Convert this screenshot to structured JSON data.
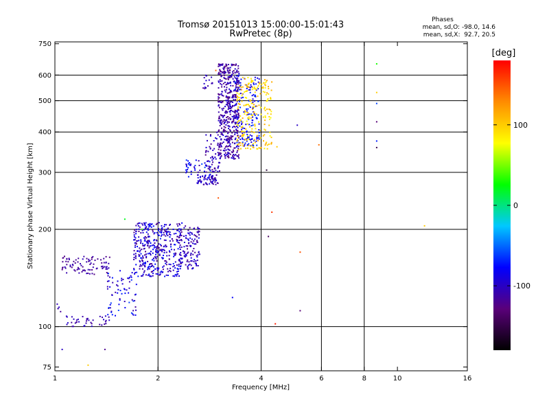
{
  "chart_data": {
    "type": "scatter",
    "title": "Tromsø 20151013 15:00:00-15:01:43",
    "subtitle": "RwPretec (8p)",
    "phase_box": {
      "title": "Phases",
      "line1": "mean, sd,O: -98.0, 14.6",
      "line2": "mean, sd,X:  92.7, 20.5"
    },
    "xlabel": "Frequency [MHz]",
    "ylabel": "Stationary phase Virtual Height [km]",
    "x_scale": "log",
    "y_scale": "log",
    "xlim": [
      1,
      16
    ],
    "ylim": [
      73,
      760
    ],
    "x_ticks": [
      1,
      2,
      4,
      6,
      8,
      10,
      16
    ],
    "x_tick_labels": [
      "1",
      "2",
      "4",
      "6",
      "8",
      "10",
      "16"
    ],
    "y_ticks": [
      75,
      100,
      200,
      300,
      400,
      500,
      600,
      750
    ],
    "y_tick_labels": [
      "75",
      "100",
      "200",
      "300",
      "400",
      "500",
      "600",
      "750"
    ],
    "grid_x": [
      2,
      4,
      6,
      8
    ],
    "grid_y": [
      100,
      200,
      300,
      400,
      500,
      600
    ],
    "grid": true,
    "colorbar": {
      "label": "[deg]",
      "range": [
        -180,
        180
      ],
      "ticks": [
        100,
        0,
        -100
      ],
      "tick_labels": [
        "100",
        "0",
        "-100"
      ],
      "colors": [
        "#000000",
        "#5a007a",
        "#0000ff",
        "#00c8ff",
        "#00ff00",
        "#ffff00",
        "#ff8c00",
        "#ff0000"
      ]
    },
    "series": [
      {
        "regions": [
          {
            "x": [
              1.0,
              1.05
            ],
            "y": [
              110,
              118
            ],
            "n": 5,
            "phase": [
              -120,
              -95
            ]
          },
          {
            "x": [
              1.05,
              1.45
            ],
            "y": [
              145,
              165
            ],
            "n": 90,
            "phase": [
              -125,
              -100
            ]
          },
          {
            "x": [
              1.08,
              1.45
            ],
            "y": [
              100,
              108
            ],
            "n": 40,
            "phase": [
              -120,
              -95
            ]
          },
          {
            "x": [
              1.4,
              1.75
            ],
            "y": [
              108,
              150
            ],
            "n": 70,
            "phase": [
              -115,
              -60
            ]
          },
          {
            "x": [
              1.7,
              2.35
            ],
            "y": [
              143,
              210
            ],
            "n": 420,
            "phase": [
              -125,
              -70
            ]
          },
          {
            "x": [
              2.3,
              2.65
            ],
            "y": [
              150,
              205
            ],
            "n": 120,
            "phase": [
              -120,
              -80
            ]
          },
          {
            "x": [
              2.6,
              3.0
            ],
            "y": [
              275,
              295
            ],
            "n": 60,
            "phase": [
              -120,
              -80
            ]
          },
          {
            "x": [
              2.4,
              2.9
            ],
            "y": [
              290,
              330
            ],
            "n": 50,
            "phase": [
              -115,
              -60
            ]
          },
          {
            "x": [
              3.0,
              3.45
            ],
            "y": [
              330,
              650
            ],
            "n": 500,
            "phase": [
              -130,
              -90
            ]
          },
          {
            "x": [
              2.75,
              3.05
            ],
            "y": [
              300,
              400
            ],
            "n": 60,
            "phase": [
              -125,
              -90
            ]
          },
          {
            "x": [
              3.35,
              3.95
            ],
            "y": [
              360,
              600
            ],
            "n": 150,
            "phase": [
              -100,
              -60
            ]
          },
          {
            "x": [
              3.4,
              4.3
            ],
            "y": [
              350,
              590
            ],
            "n": 220,
            "phase": [
              75,
              120
            ]
          },
          {
            "x": [
              2.7,
              2.9
            ],
            "y": [
              540,
              600
            ],
            "n": 15,
            "phase": [
              -120,
              -90
            ]
          }
        ]
      },
      {
        "points": [
          {
            "x": 2.95,
            "y": 620,
            "phase": 140
          },
          {
            "x": 3.0,
            "y": 250,
            "phase": 150
          },
          {
            "x": 4.3,
            "y": 226,
            "phase": 160
          },
          {
            "x": 4.4,
            "y": 102,
            "phase": 170
          },
          {
            "x": 4.45,
            "y": 360,
            "phase": 100
          },
          {
            "x": 5.1,
            "y": 420,
            "phase": -100
          },
          {
            "x": 5.2,
            "y": 112,
            "phase": -130
          },
          {
            "x": 5.2,
            "y": 170,
            "phase": 150
          },
          {
            "x": 5.9,
            "y": 365,
            "phase": 140
          },
          {
            "x": 8.7,
            "y": 650,
            "phase": 30
          },
          {
            "x": 8.7,
            "y": 530,
            "phase": 100
          },
          {
            "x": 8.7,
            "y": 490,
            "phase": -60
          },
          {
            "x": 8.7,
            "y": 430,
            "phase": -130
          },
          {
            "x": 8.7,
            "y": 375,
            "phase": -70
          },
          {
            "x": 8.7,
            "y": 358,
            "phase": -150
          },
          {
            "x": 12.0,
            "y": 205,
            "phase": 100
          },
          {
            "x": 4.2,
            "y": 190,
            "phase": -140
          },
          {
            "x": 4.15,
            "y": 305,
            "phase": -160
          },
          {
            "x": 3.3,
            "y": 123,
            "phase": -80
          },
          {
            "x": 1.05,
            "y": 85,
            "phase": -100
          },
          {
            "x": 1.4,
            "y": 85,
            "phase": -120
          },
          {
            "x": 1.25,
            "y": 76,
            "phase": 100
          },
          {
            "x": 1.6,
            "y": 215,
            "phase": 20
          },
          {
            "x": 1.8,
            "y": 200,
            "phase": 40
          }
        ]
      }
    ]
  }
}
